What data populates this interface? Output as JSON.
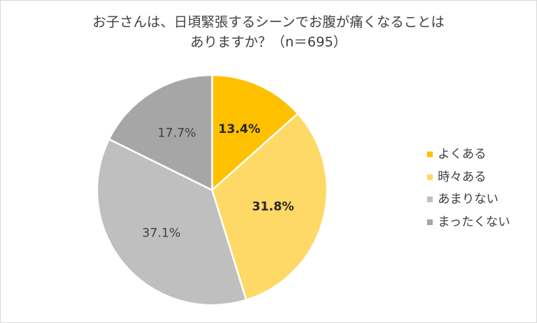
{
  "title": {
    "line1": "お子さんは、日頃緊張するシーンでお腹が痛くなることは",
    "line2": "ありますか？（n＝695）"
  },
  "chart_data": {
    "type": "pie",
    "title": "お子さんは、日頃緊張するシーンでお腹が痛くなることはありますか？（n＝695）",
    "categories": [
      "よくある",
      "時々ある",
      "あまりない",
      "まったくない"
    ],
    "values": [
      13.4,
      31.8,
      37.1,
      17.7
    ],
    "labels": [
      "13.4%",
      "31.8%",
      "37.1%",
      "17.7%"
    ],
    "colors": [
      "#ffc000",
      "#ffd966",
      "#bfbfbf",
      "#a6a6a6"
    ],
    "start_angle": "12 o'clock",
    "direction": "clockwise",
    "legend_position": "right"
  },
  "legend": [
    {
      "label": "よくある",
      "color": "#ffc000"
    },
    {
      "label": "時々ある",
      "color": "#ffd966"
    },
    {
      "label": "あまりない",
      "color": "#bfbfbf"
    },
    {
      "label": "まったくない",
      "color": "#a6a6a6"
    }
  ]
}
